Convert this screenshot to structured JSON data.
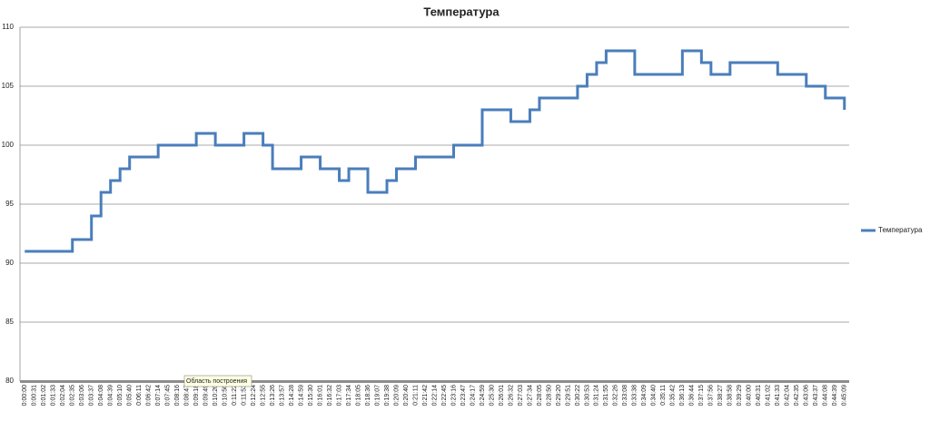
{
  "chart_data": {
    "type": "line",
    "title": "Температура",
    "categories": [
      "0:00:00",
      "0:00:31",
      "0:01:02",
      "0:01:33",
      "0:02:04",
      "0:02:35",
      "0:03:06",
      "0:03:37",
      "0:04:08",
      "0:04:39",
      "0:05:10",
      "0:05:40",
      "0:06:11",
      "0:06:42",
      "0:07:14",
      "0:07:45",
      "0:08:16",
      "0:08:47",
      "0:09:18",
      "0:09:49",
      "0:10:20",
      "0:10:50",
      "0:11:22",
      "0:11:53",
      "0:12:24",
      "0:12:55",
      "0:13:26",
      "0:13:57",
      "0:14:28",
      "0:14:59",
      "0:15:30",
      "0:16:01",
      "0:16:32",
      "0:17:03",
      "0:17:34",
      "0:18:05",
      "0:18:36",
      "0:19:07",
      "0:19:38",
      "0:20:09",
      "0:20:40",
      "0:21:11",
      "0:21:42",
      "0:22:14",
      "0:22:45",
      "0:23:16",
      "0:23:47",
      "0:24:17",
      "0:24:59",
      "0:25:30",
      "0:26:01",
      "0:26:32",
      "0:27:03",
      "0:27:34",
      "0:28:05",
      "0:28:50",
      "0:29:20",
      "0:29:51",
      "0:30:22",
      "0:30:53",
      "0:31:24",
      "0:31:55",
      "0:32:26",
      "0:33:08",
      "0:33:38",
      "0:34:09",
      "0:34:40",
      "0:35:11",
      "0:35:42",
      "0:36:13",
      "0:36:44",
      "0:37:15",
      "0:37:56",
      "0:38:27",
      "0:38:58",
      "0:39:29",
      "0:40:00",
      "0:40:31",
      "0:41:02",
      "0:41:33",
      "0:42:04",
      "0:42:35",
      "0:43:06",
      "0:43:37",
      "0:44:08",
      "0:44:39",
      "0:45:09"
    ],
    "series": [
      {
        "name": "Температура",
        "color": "#4a7ebb",
        "values": [
          91,
          91,
          91,
          91,
          91,
          92,
          92,
          94,
          96,
          97,
          98,
          99,
          99,
          99,
          100,
          100,
          100,
          100,
          101,
          101,
          100,
          100,
          100,
          101,
          101,
          100,
          98,
          98,
          98,
          99,
          99,
          98,
          98,
          97,
          98,
          98,
          96,
          96,
          97,
          98,
          98,
          99,
          99,
          99,
          99,
          100,
          100,
          100,
          103,
          103,
          103,
          102,
          102,
          103,
          104,
          104,
          104,
          104,
          105,
          106,
          107,
          108,
          108,
          108,
          106,
          106,
          106,
          106,
          106,
          108,
          108,
          107,
          106,
          106,
          107,
          107,
          107,
          107,
          107,
          106,
          106,
          106,
          105,
          105,
          104,
          104,
          103
        ]
      }
    ],
    "ylim": [
      80,
      110
    ],
    "yticks": [
      80,
      85,
      90,
      95,
      100,
      105,
      110
    ],
    "grid": true,
    "legend": "right",
    "tooltip": "Область построения"
  }
}
